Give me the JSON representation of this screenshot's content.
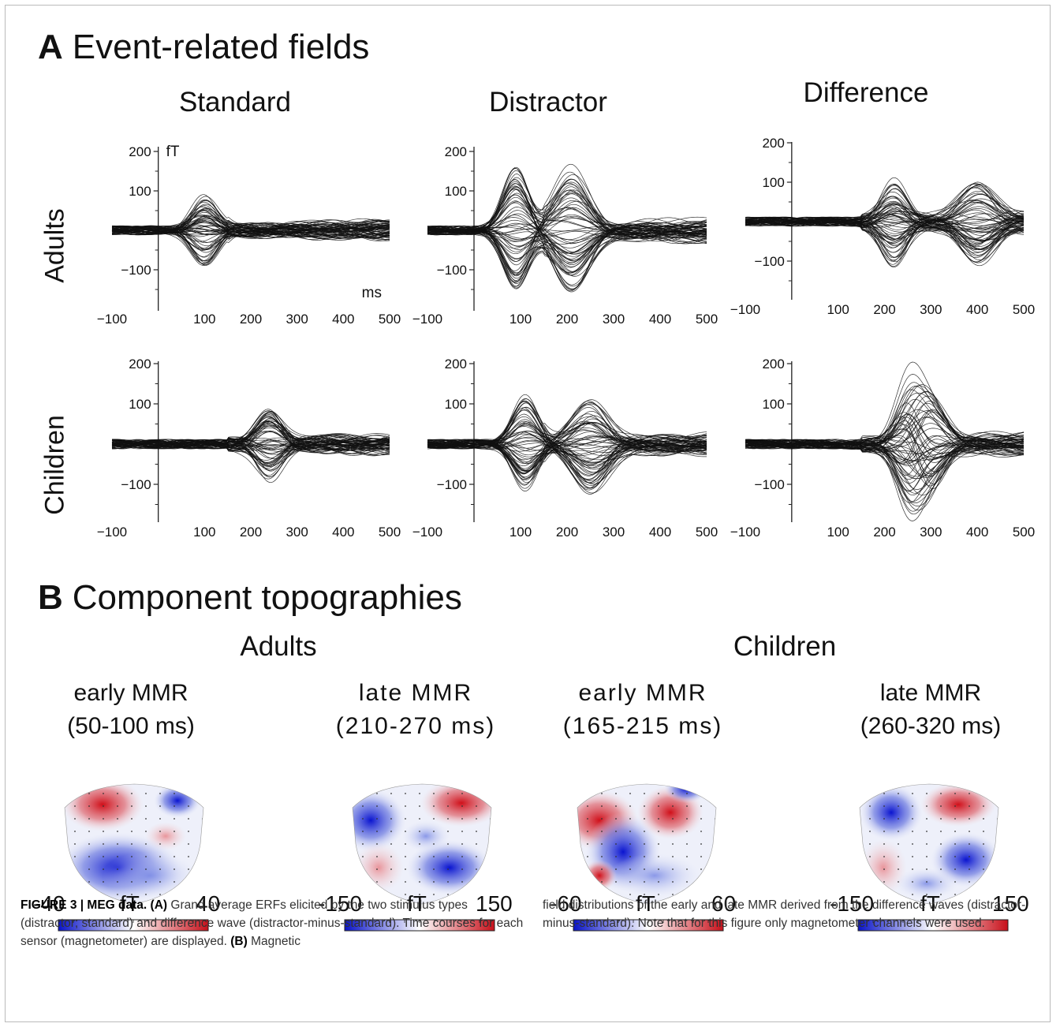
{
  "panel_a": {
    "letter": "A",
    "title": "Event-related fields"
  },
  "panel_b": {
    "letter": "B",
    "title": "Component topographies"
  },
  "columns": [
    "Standard",
    "Distractor",
    "Difference"
  ],
  "rows": [
    "Adults",
    "Children"
  ],
  "units": {
    "y": "fT",
    "x": "ms"
  },
  "chart_data": [
    {
      "type": "line",
      "row": "Adults",
      "condition": "Standard",
      "xlim": [
        -100,
        500
      ],
      "ylim": [
        -180,
        210
      ],
      "x_ticks": [
        -100,
        100,
        200,
        300,
        400,
        500
      ],
      "y_ticks": [
        200,
        100,
        -100
      ],
      "peak_abs": 160,
      "peak_ms": [
        100
      ],
      "seed": 11
    },
    {
      "type": "line",
      "row": "Adults",
      "condition": "Distractor",
      "xlim": [
        -100,
        500
      ],
      "ylim": [
        -180,
        210
      ],
      "x_ticks": [
        -100,
        100,
        200,
        300,
        400,
        500
      ],
      "y_ticks": [
        200,
        100,
        -100
      ],
      "peak_abs": 280,
      "peak_ms": [
        90,
        210
      ],
      "seed": 23
    },
    {
      "type": "line",
      "row": "Adults",
      "condition": "Difference",
      "xlim": [
        -100,
        500
      ],
      "ylim": [
        -180,
        210
      ],
      "x_ticks": [
        -100,
        100,
        200,
        300,
        400,
        500
      ],
      "y_ticks": [
        200,
        100,
        -100
      ],
      "peak_abs": 200,
      "peak_ms": [
        220,
        400
      ],
      "seed": 37
    },
    {
      "type": "line",
      "row": "Children",
      "condition": "Standard",
      "xlim": [
        -100,
        500
      ],
      "ylim": [
        -180,
        210
      ],
      "x_ticks": [
        -100,
        100,
        200,
        300,
        400,
        500
      ],
      "y_ticks": [
        200,
        100,
        -100
      ],
      "peak_abs": 155,
      "peak_ms": [
        240
      ],
      "seed": 41
    },
    {
      "type": "line",
      "row": "Children",
      "condition": "Distractor",
      "xlim": [
        -100,
        500
      ],
      "ylim": [
        -180,
        210
      ],
      "x_ticks": [
        -100,
        100,
        200,
        300,
        400,
        500
      ],
      "y_ticks": [
        200,
        100,
        -100
      ],
      "peak_abs": 205,
      "peak_ms": [
        110,
        250
      ],
      "seed": 53
    },
    {
      "type": "line",
      "row": "Children",
      "condition": "Difference",
      "xlim": [
        -100,
        500
      ],
      "ylim": [
        -180,
        210
      ],
      "x_ticks": [
        -100,
        100,
        200,
        300,
        400,
        500
      ],
      "y_ticks": [
        200,
        100,
        -100
      ],
      "peak_abs": 240,
      "peak_ms": [
        250,
        290
      ],
      "seed": 67
    }
  ],
  "topographies": {
    "groups": [
      "Adults",
      "Children"
    ],
    "maps": [
      {
        "group": "Adults",
        "name": "early MMR",
        "window": "(50-100 ms)",
        "scale_min": "-40",
        "scale_unit": "fT",
        "scale_max": "40"
      },
      {
        "group": "Adults",
        "name": "late MMR",
        "window": "(210-270 ms)",
        "scale_min": "-150",
        "scale_unit": "fT",
        "scale_max": "150"
      },
      {
        "group": "Children",
        "name": "early MMR",
        "window": "(165-215 ms)",
        "scale_min": "-60",
        "scale_unit": "fT",
        "scale_max": "60"
      },
      {
        "group": "Children",
        "name": "late MMR",
        "window": "(260-320 ms)",
        "scale_min": "-150",
        "scale_unit": "fT",
        "scale_max": "150"
      }
    ],
    "colors": {
      "negative": "#0a14c8",
      "zero": "#ffffff",
      "positive": "#c8101a"
    }
  },
  "caption": {
    "fig_label": "FIGURE 3 | MEG data.",
    "a_label": "(A)",
    "text_a": "Grand average ERFs elicited by the two stimulus types (distractor; standard) and difference wave (distractor-minus-standard). Time courses for each sensor (magnetometer) are displayed.",
    "b_label": "(B)",
    "text_b1": "Magnetic",
    "text_b2": "field distributions of the early and late MMR derived from the difference waves (distractor-minus-standard). Note that for this figure only magnetometer channels were used."
  }
}
